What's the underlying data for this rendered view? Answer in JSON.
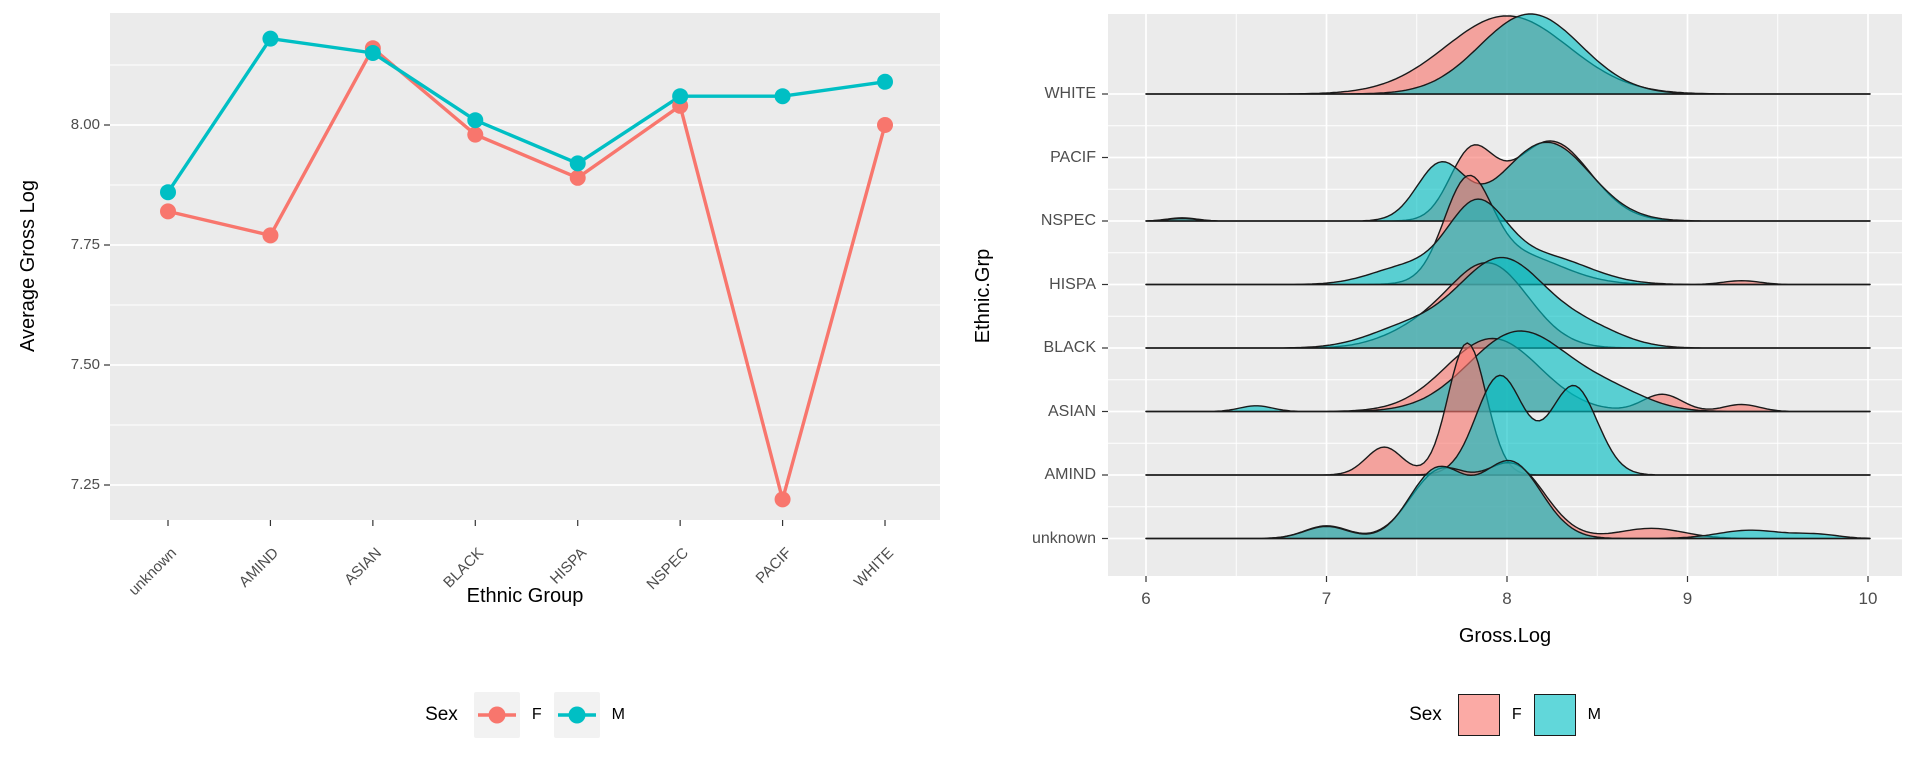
{
  "sex_colors": {
    "F": "#F8766D",
    "M": "#00BFC4"
  },
  "panel_color": "#EBEBEB",
  "gridline_color": "#FFFFFF",
  "tick_text_color": "#4d4d4d",
  "chart_data": [
    {
      "type": "line",
      "title": "",
      "xlabel": "Ethnic Group",
      "ylabel": "Average Gross Log",
      "legend_title": "Sex",
      "categories": [
        "unknown",
        "AMIND",
        "ASIAN",
        "BLACK",
        "HISPA",
        "NSPEC",
        "PACIF",
        "WHITE"
      ],
      "ytick_labels": [
        "7.25",
        "7.50",
        "7.75",
        "8.00"
      ],
      "yticks": [
        7.25,
        7.5,
        7.75,
        8.0
      ],
      "ylim": [
        7.18,
        8.23
      ],
      "grid": "horizontal-only",
      "legend_position": "bottom",
      "series": [
        {
          "name": "F",
          "color": "#F8766D",
          "values": [
            7.82,
            7.77,
            8.16,
            7.98,
            7.89,
            8.04,
            7.22,
            8.0
          ]
        },
        {
          "name": "M",
          "color": "#00BFC4",
          "values": [
            7.86,
            8.18,
            8.15,
            8.01,
            7.92,
            8.06,
            8.06,
            8.09
          ]
        }
      ]
    },
    {
      "type": "area",
      "subtype": "ridgeline-density",
      "title": "",
      "xlabel": "Gross.Log",
      "ylabel": "Ethnic.Grp",
      "legend_title": "Sex",
      "categories_top_to_bottom": [
        "WHITE",
        "PACIF",
        "NSPEC",
        "HISPA",
        "BLACK",
        "ASIAN",
        "AMIND",
        "unknown"
      ],
      "xticks": [
        6,
        7,
        8,
        9,
        10
      ],
      "xlim": [
        5.8,
        10.2
      ],
      "grid": "both",
      "legend_position": "bottom",
      "note": "PACIF row has no density curve (too few observations); components are [mean, sd, height] with height in units of row spacing",
      "ridges": [
        {
          "group": "WHITE",
          "F": [
            [
              8.0,
              0.34,
              1.23
            ]
          ],
          "M": [
            [
              8.13,
              0.28,
              1.26
            ]
          ]
        },
        {
          "group": "PACIF",
          "F": [],
          "M": []
        },
        {
          "group": "NSPEC",
          "F": [
            [
              6.2,
              0.08,
              0.05
            ],
            [
              7.8,
              0.12,
              1.01
            ],
            [
              8.24,
              0.22,
              1.26
            ]
          ],
          "M": [
            [
              6.2,
              0.08,
              0.04
            ],
            [
              7.63,
              0.13,
              0.87
            ],
            [
              8.22,
              0.24,
              1.24
            ]
          ]
        },
        {
          "group": "HISPA",
          "F": [
            [
              7.78,
              0.13,
              1.45
            ],
            [
              8.05,
              0.25,
              0.47
            ],
            [
              9.3,
              0.1,
              0.06
            ]
          ],
          "M": [
            [
              7.45,
              0.2,
              0.28
            ],
            [
              7.83,
              0.16,
              1.15
            ],
            [
              8.2,
              0.25,
              0.44
            ]
          ]
        },
        {
          "group": "BLACK",
          "F": [
            [
              7.5,
              0.2,
              0.24
            ],
            [
              7.9,
              0.22,
              1.31
            ]
          ],
          "M": [
            [
              7.45,
              0.22,
              0.31
            ],
            [
              7.97,
              0.24,
              1.39
            ],
            [
              8.45,
              0.2,
              0.28
            ]
          ]
        },
        {
          "group": "ASIAN",
          "F": [
            [
              7.92,
              0.26,
              1.15
            ],
            [
              8.86,
              0.11,
              0.27
            ],
            [
              9.3,
              0.1,
              0.11
            ]
          ],
          "M": [
            [
              6.61,
              0.09,
              0.09
            ],
            [
              8.07,
              0.28,
              1.26
            ],
            [
              8.6,
              0.2,
              0.24
            ]
          ]
        },
        {
          "group": "AMIND",
          "F": [
            [
              7.32,
              0.1,
              0.44
            ],
            [
              7.78,
              0.105,
              2.08
            ]
          ],
          "M": [
            [
              7.96,
              0.13,
              1.56
            ],
            [
              8.37,
              0.13,
              1.4
            ]
          ]
        },
        {
          "group": "unknown",
          "F": [
            [
              7.0,
              0.12,
              0.2
            ],
            [
              7.62,
              0.16,
              1.01
            ],
            [
              8.03,
              0.18,
              1.15
            ],
            [
              8.8,
              0.18,
              0.16
            ]
          ],
          "M": [
            [
              7.0,
              0.12,
              0.19
            ],
            [
              7.61,
              0.15,
              1.06
            ],
            [
              8.02,
              0.17,
              1.2
            ],
            [
              9.35,
              0.18,
              0.13
            ],
            [
              9.72,
              0.12,
              0.06
            ]
          ]
        }
      ]
    }
  ]
}
